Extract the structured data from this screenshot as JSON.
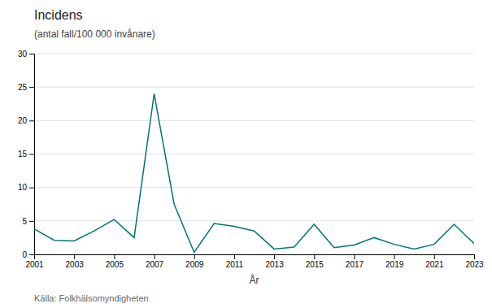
{
  "chart_data": {
    "type": "line",
    "title": "Incidens",
    "subtitle": "(antal fall/100 000 invånare)",
    "x_label": "År",
    "annotations": [
      "Källa: Folkhälsomyndigheten"
    ],
    "x": [
      2001,
      2002,
      2003,
      2004,
      2005,
      2006,
      2007,
      2008,
      2009,
      2010,
      2011,
      2012,
      2013,
      2014,
      2015,
      2016,
      2017,
      2018,
      2019,
      2020,
      2021,
      2022,
      2023
    ],
    "values": [
      3.8,
      2.1,
      2.0,
      3.5,
      5.2,
      2.5,
      24.0,
      7.5,
      0.3,
      4.6,
      4.2,
      3.5,
      0.8,
      1.1,
      4.5,
      1.0,
      1.4,
      2.5,
      1.5,
      0.8,
      1.5,
      4.5,
      1.6
    ],
    "color": "#007575",
    "xlim": [
      2001,
      2023
    ],
    "xticks": [
      2001,
      2003,
      2005,
      2007,
      2009,
      2011,
      2013,
      2015,
      2017,
      2019,
      2021,
      2023
    ],
    "ylim": [
      0,
      30
    ],
    "yticks": [
      0,
      5,
      10,
      15,
      20,
      25,
      30
    ],
    "grid": true
  }
}
